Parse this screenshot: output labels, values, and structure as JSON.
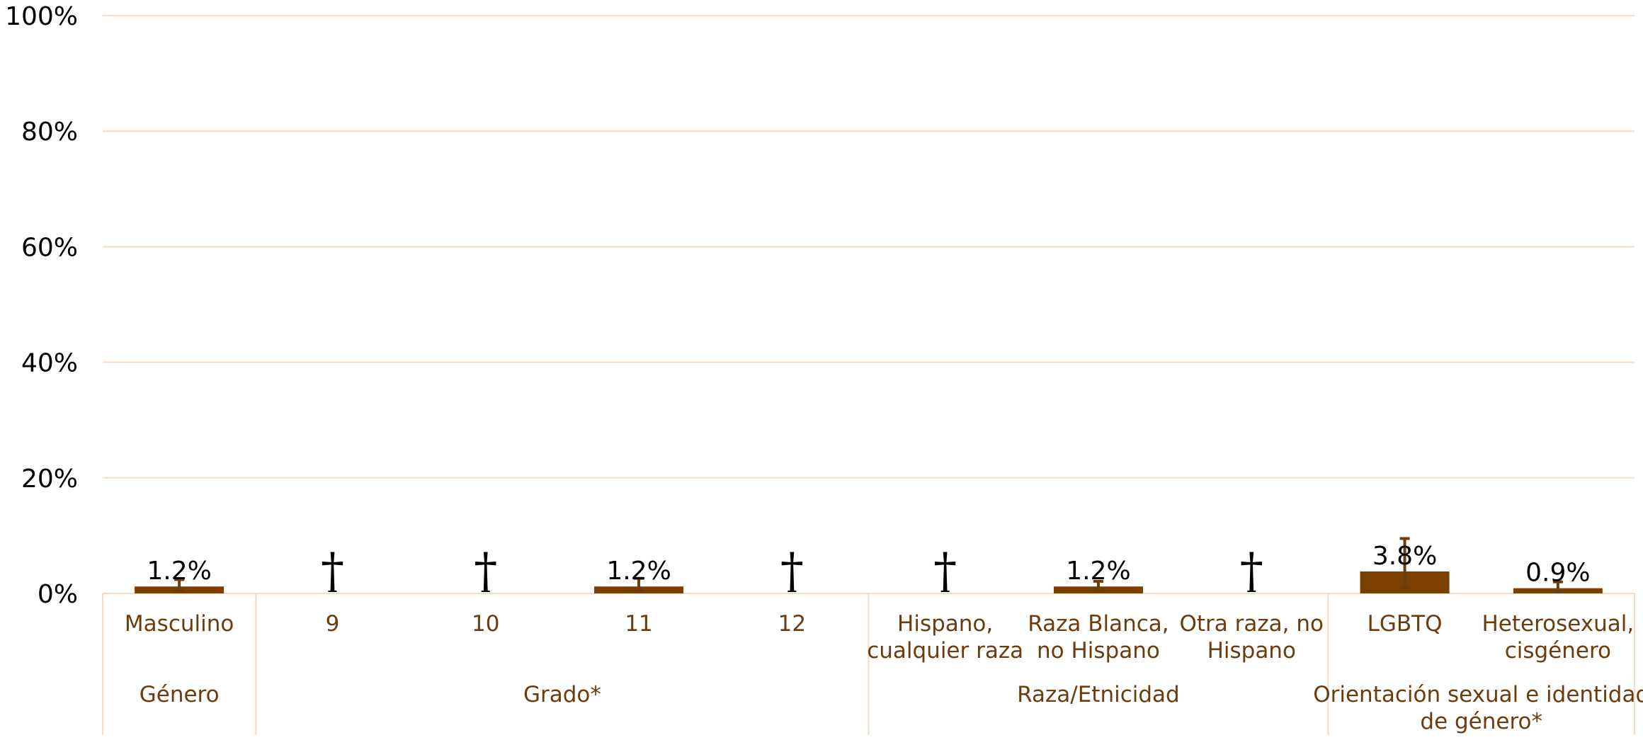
{
  "chart_data": {
    "type": "bar",
    "ylim": [
      0,
      100
    ],
    "yticks": [
      0,
      20,
      40,
      60,
      80,
      100
    ],
    "ytick_labels": [
      "0%",
      "20%",
      "40%",
      "60%",
      "80%",
      "100%"
    ],
    "grid": true,
    "suppressed_marker": "†",
    "categories": [
      "Masculino",
      "9",
      "10",
      "11",
      "12",
      "Hispano, cualquier raza",
      "Raza Blanca, no Hispano",
      "Otra raza, no Hispano",
      "LGBTQ",
      "Heterosexual, cisgénero"
    ],
    "category_lines": [
      [
        "Masculino"
      ],
      [
        "9"
      ],
      [
        "10"
      ],
      [
        "11"
      ],
      [
        "12"
      ],
      [
        "Hispano,",
        "cualquier raza"
      ],
      [
        "Raza Blanca,",
        "no Hispano"
      ],
      [
        "Otra raza, no",
        "Hispano"
      ],
      [
        "LGBTQ"
      ],
      [
        "Heterosexual,",
        "cisgénero"
      ]
    ],
    "groups": [
      {
        "lines": [
          "Género"
        ],
        "start": 0,
        "end": 0
      },
      {
        "lines": [
          "Grado*"
        ],
        "start": 1,
        "end": 4
      },
      {
        "lines": [
          "Raza/Etnicidad"
        ],
        "start": 5,
        "end": 7
      },
      {
        "lines": [
          "Orientación sexual e identidad",
          "de género*"
        ],
        "start": 8,
        "end": 9
      }
    ],
    "values": [
      1.2,
      null,
      null,
      1.2,
      null,
      null,
      1.2,
      null,
      3.8,
      0.9
    ],
    "data_labels": [
      "1.2%",
      "†",
      "†",
      "1.2%",
      "†",
      "†",
      "1.2%",
      "†",
      "3.8%",
      "0.9%"
    ],
    "error_bars": [
      [
        0.5,
        2.4
      ],
      null,
      null,
      [
        0.5,
        2.6
      ],
      null,
      null,
      [
        0.6,
        2.1
      ],
      null,
      [
        1.0,
        9.5
      ],
      [
        0.3,
        2.0
      ]
    ],
    "colors": {
      "bar": "#7b3f00",
      "error_bar": "#6b3c0e",
      "grid": "#f6dcc8",
      "axis": "#f6dcc8",
      "category_text": "#6b3c0e"
    }
  }
}
